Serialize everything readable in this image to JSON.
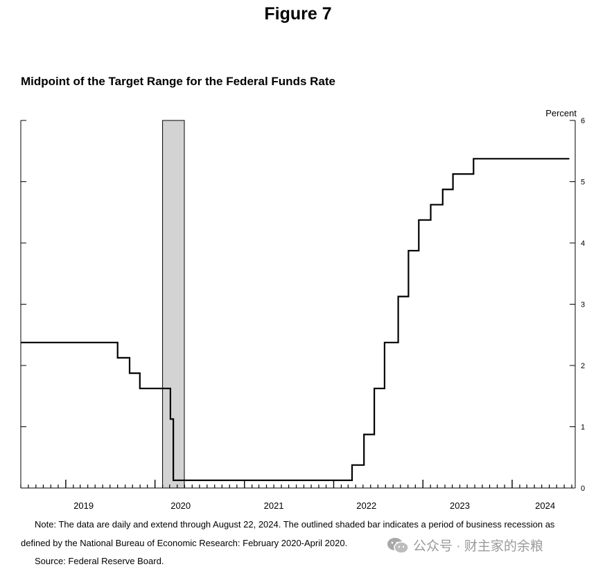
{
  "figure_title": "Figure 7",
  "notes": {
    "line1": "Note: The data are daily and extend through August 22, 2024. The outlined shaded bar indicates a period of business recession as",
    "line2": "defined by the National Bureau of Economic Research: February 2020-April 2020.",
    "source": "Source: Federal Reserve Board."
  },
  "watermark": {
    "text": "公众号 · 财主家的余粮",
    "icon": "wechat-icon"
  },
  "chart_data": {
    "type": "line",
    "title": "Midpoint of the Target Range for the Federal Funds Rate",
    "ylabel": "Percent",
    "xlabel": "",
    "ylim": [
      0,
      6
    ],
    "xlim": [
      "2018-07-01",
      "2024-09-15"
    ],
    "y_ticks": [
      0,
      1,
      2,
      3,
      4,
      5,
      6
    ],
    "x_tick_labels": [
      {
        "label": "2019",
        "center": "2019-03-15"
      },
      {
        "label": "2020",
        "center": "2020-04-15"
      },
      {
        "label": "2021",
        "center": "2021-05-01"
      },
      {
        "label": "2022",
        "center": "2022-05-15"
      },
      {
        "label": "2023",
        "center": "2023-06-01"
      },
      {
        "label": "2024",
        "center": "2024-05-15"
      }
    ],
    "recession": {
      "start": "2020-02-01",
      "end": "2020-04-30"
    },
    "grid": false,
    "series": [
      {
        "step": true,
        "x": [
          "2018-07-01",
          "2019-08-01",
          "2019-09-19",
          "2019-10-31",
          "2020-03-04",
          "2020-03-16",
          "2021-12-31",
          "2022-03-17",
          "2022-05-05",
          "2022-06-16",
          "2022-07-28",
          "2022-09-22",
          "2022-11-03",
          "2022-12-15",
          "2023-02-02",
          "2023-03-23",
          "2023-05-04",
          "2023-07-27",
          "2024-08-22"
        ],
        "y": [
          2.375,
          2.125,
          1.875,
          1.625,
          1.125,
          0.125,
          0.125,
          0.375,
          0.875,
          1.625,
          2.375,
          3.125,
          3.875,
          4.375,
          4.625,
          4.875,
          5.125,
          5.375,
          5.375
        ]
      }
    ]
  }
}
